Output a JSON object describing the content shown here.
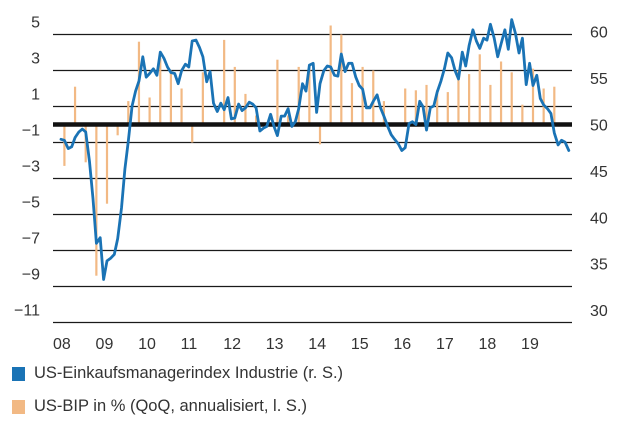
{
  "chart_data": {
    "type": "bar+line",
    "title": "",
    "xlabel": "",
    "ylabel_left": "US-BIP in % (QoQ, annualisiert)",
    "ylabel_right": "US-Einkaufsmanagerindex Industrie",
    "x_tick_labels": [
      "08",
      "09",
      "10",
      "11",
      "12",
      "13",
      "14",
      "15",
      "16",
      "17",
      "18",
      "19"
    ],
    "x_range": [
      2008.0,
      2020.0
    ],
    "left_axis": {
      "ticks": [
        5,
        3,
        1,
        -1,
        -3,
        -5,
        -7,
        -9,
        -11
      ],
      "ylim": [
        -11,
        5
      ]
    },
    "right_axis": {
      "ticks": [
        60,
        55,
        50,
        45,
        40,
        35,
        30
      ],
      "ylim": [
        30,
        60
      ]
    },
    "zero_line": {
      "left_value": 0,
      "right_value": 50
    },
    "grid": true,
    "legend_placement": "bottom-left",
    "series": [
      {
        "name": "US-BIP in % (QoQ, annualisiert, l. S.)",
        "type": "bar",
        "axis": "left",
        "color": "#F2B984",
        "quarters": [
          "2008Q1",
          "2008Q2",
          "2008Q3",
          "2008Q4",
          "2009Q1",
          "2009Q2",
          "2009Q3",
          "2009Q4",
          "2010Q1",
          "2010Q2",
          "2010Q3",
          "2010Q4",
          "2011Q1",
          "2011Q2",
          "2011Q3",
          "2011Q4",
          "2012Q1",
          "2012Q2",
          "2012Q3",
          "2012Q4",
          "2013Q1",
          "2013Q2",
          "2013Q3",
          "2013Q4",
          "2014Q1",
          "2014Q2",
          "2014Q3",
          "2014Q4",
          "2015Q1",
          "2015Q2",
          "2015Q3",
          "2015Q4",
          "2016Q1",
          "2016Q2",
          "2016Q3",
          "2016Q4",
          "2017Q1",
          "2017Q2",
          "2017Q3",
          "2017Q4",
          "2018Q1",
          "2018Q2",
          "2018Q3",
          "2018Q4",
          "2019Q1",
          "2019Q2",
          "2019Q3"
        ],
        "values": [
          -2.3,
          2.1,
          -2.1,
          -8.4,
          -4.4,
          -0.6,
          1.3,
          4.6,
          1.5,
          3.7,
          3.0,
          2.0,
          -1.0,
          2.9,
          -0.1,
          4.7,
          3.2,
          1.7,
          0.5,
          0.1,
          3.6,
          0.5,
          3.2,
          3.2,
          -1.1,
          5.5,
          5.0,
          2.3,
          3.2,
          3.0,
          1.3,
          0.1,
          2.0,
          1.9,
          2.2,
          1.9,
          1.8,
          3.0,
          2.8,
          3.9,
          2.2,
          3.5,
          2.9,
          1.1,
          3.1,
          2.0,
          2.1
        ]
      },
      {
        "name": "US-Einkaufsmanagerindex Industrie (r. S.)",
        "type": "line",
        "axis": "right",
        "color": "#1A73B5",
        "x": [
          2008.0,
          2008.08,
          2008.17,
          2008.25,
          2008.33,
          2008.42,
          2008.5,
          2008.58,
          2008.67,
          2008.75,
          2008.83,
          2008.92,
          2009.0,
          2009.08,
          2009.17,
          2009.25,
          2009.33,
          2009.42,
          2009.5,
          2009.58,
          2009.67,
          2009.75,
          2009.83,
          2009.92,
          2010.0,
          2010.08,
          2010.17,
          2010.25,
          2010.33,
          2010.42,
          2010.5,
          2010.58,
          2010.67,
          2010.75,
          2010.83,
          2010.92,
          2011.0,
          2011.08,
          2011.17,
          2011.25,
          2011.33,
          2011.42,
          2011.5,
          2011.58,
          2011.67,
          2011.75,
          2011.83,
          2011.92,
          2012.0,
          2012.08,
          2012.17,
          2012.25,
          2012.33,
          2012.42,
          2012.5,
          2012.58,
          2012.67,
          2012.75,
          2012.83,
          2012.92,
          2013.0,
          2013.08,
          2013.17,
          2013.25,
          2013.33,
          2013.42,
          2013.5,
          2013.58,
          2013.67,
          2013.75,
          2013.83,
          2013.92,
          2014.0,
          2014.08,
          2014.17,
          2014.25,
          2014.33,
          2014.42,
          2014.5,
          2014.58,
          2014.67,
          2014.75,
          2014.83,
          2014.92,
          2015.0,
          2015.08,
          2015.17,
          2015.25,
          2015.33,
          2015.42,
          2015.5,
          2015.58,
          2015.67,
          2015.75,
          2015.83,
          2015.92,
          2016.0,
          2016.08,
          2016.17,
          2016.25,
          2016.33,
          2016.42,
          2016.5,
          2016.58,
          2016.67,
          2016.75,
          2016.83,
          2016.92,
          2017.0,
          2017.08,
          2017.17,
          2017.25,
          2017.33,
          2017.42,
          2017.5,
          2017.58,
          2017.67,
          2017.75,
          2017.83,
          2017.92,
          2018.0,
          2018.08,
          2018.17,
          2018.25,
          2018.33,
          2018.42,
          2018.5,
          2018.58,
          2018.67,
          2018.75,
          2018.83,
          2018.92,
          2019.0,
          2019.08,
          2019.17,
          2019.25,
          2019.33,
          2019.42,
          2019.5,
          2019.58,
          2019.67,
          2019.75,
          2019.83,
          2019.92
        ],
        "values": [
          48.4,
          48.3,
          47.4,
          47.6,
          48.6,
          49.2,
          49.5,
          49.2,
          46.0,
          42.0,
          37.2,
          37.8,
          33.3,
          35.3,
          35.6,
          36.0,
          37.7,
          41.0,
          45.2,
          48.2,
          52.0,
          53.6,
          54.7,
          57.3,
          55.1,
          55.5,
          56.0,
          55.3,
          57.8,
          57.1,
          56.2,
          55.6,
          55.5,
          54.4,
          55.8,
          56.5,
          56.2,
          59.0,
          59.1,
          58.3,
          57.3,
          54.6,
          55.7,
          52.3,
          51.4,
          52.3,
          51.6,
          52.9,
          50.6,
          50.7,
          52.2,
          51.5,
          51.8,
          52.4,
          52.2,
          51.8,
          49.3,
          49.6,
          49.8,
          51.1,
          49.8,
          48.8,
          50.9,
          50.9,
          51.7,
          49.8,
          50.3,
          51.7,
          54.4,
          53.6,
          56.4,
          56.6,
          51.3,
          54.4,
          55.8,
          56.3,
          56.2,
          55.3,
          55.2,
          57.6,
          55.7,
          56.6,
          56.6,
          55.1,
          54.2,
          53.8,
          51.8,
          51.8,
          52.5,
          53.2,
          51.8,
          50.9,
          49.8,
          48.9,
          48.4,
          47.9,
          47.2,
          47.5,
          50.1,
          50.3,
          50.0,
          52.5,
          51.9,
          49.4,
          51.8,
          52.0,
          53.5,
          54.7,
          56.0,
          57.7,
          57.2,
          55.8,
          54.9,
          57.8,
          56.3,
          58.5,
          60.2,
          59.0,
          58.2,
          59.3,
          59.1,
          60.8,
          59.3,
          57.3,
          58.7,
          60.2,
          58.1,
          61.3,
          59.8,
          57.7,
          59.3,
          54.3,
          56.6,
          54.2,
          55.3,
          52.8,
          52.1,
          51.7,
          51.2,
          49.1,
          47.8,
          48.3,
          48.1,
          47.2
        ]
      }
    ]
  },
  "legend": {
    "items": [
      {
        "label": "US-Einkaufsmanagerindex Industrie (r. S.)",
        "color": "#1A73B5"
      },
      {
        "label": "US-BIP in % (QoQ, annualisiert, l. S.)",
        "color": "#F2B984"
      }
    ]
  }
}
